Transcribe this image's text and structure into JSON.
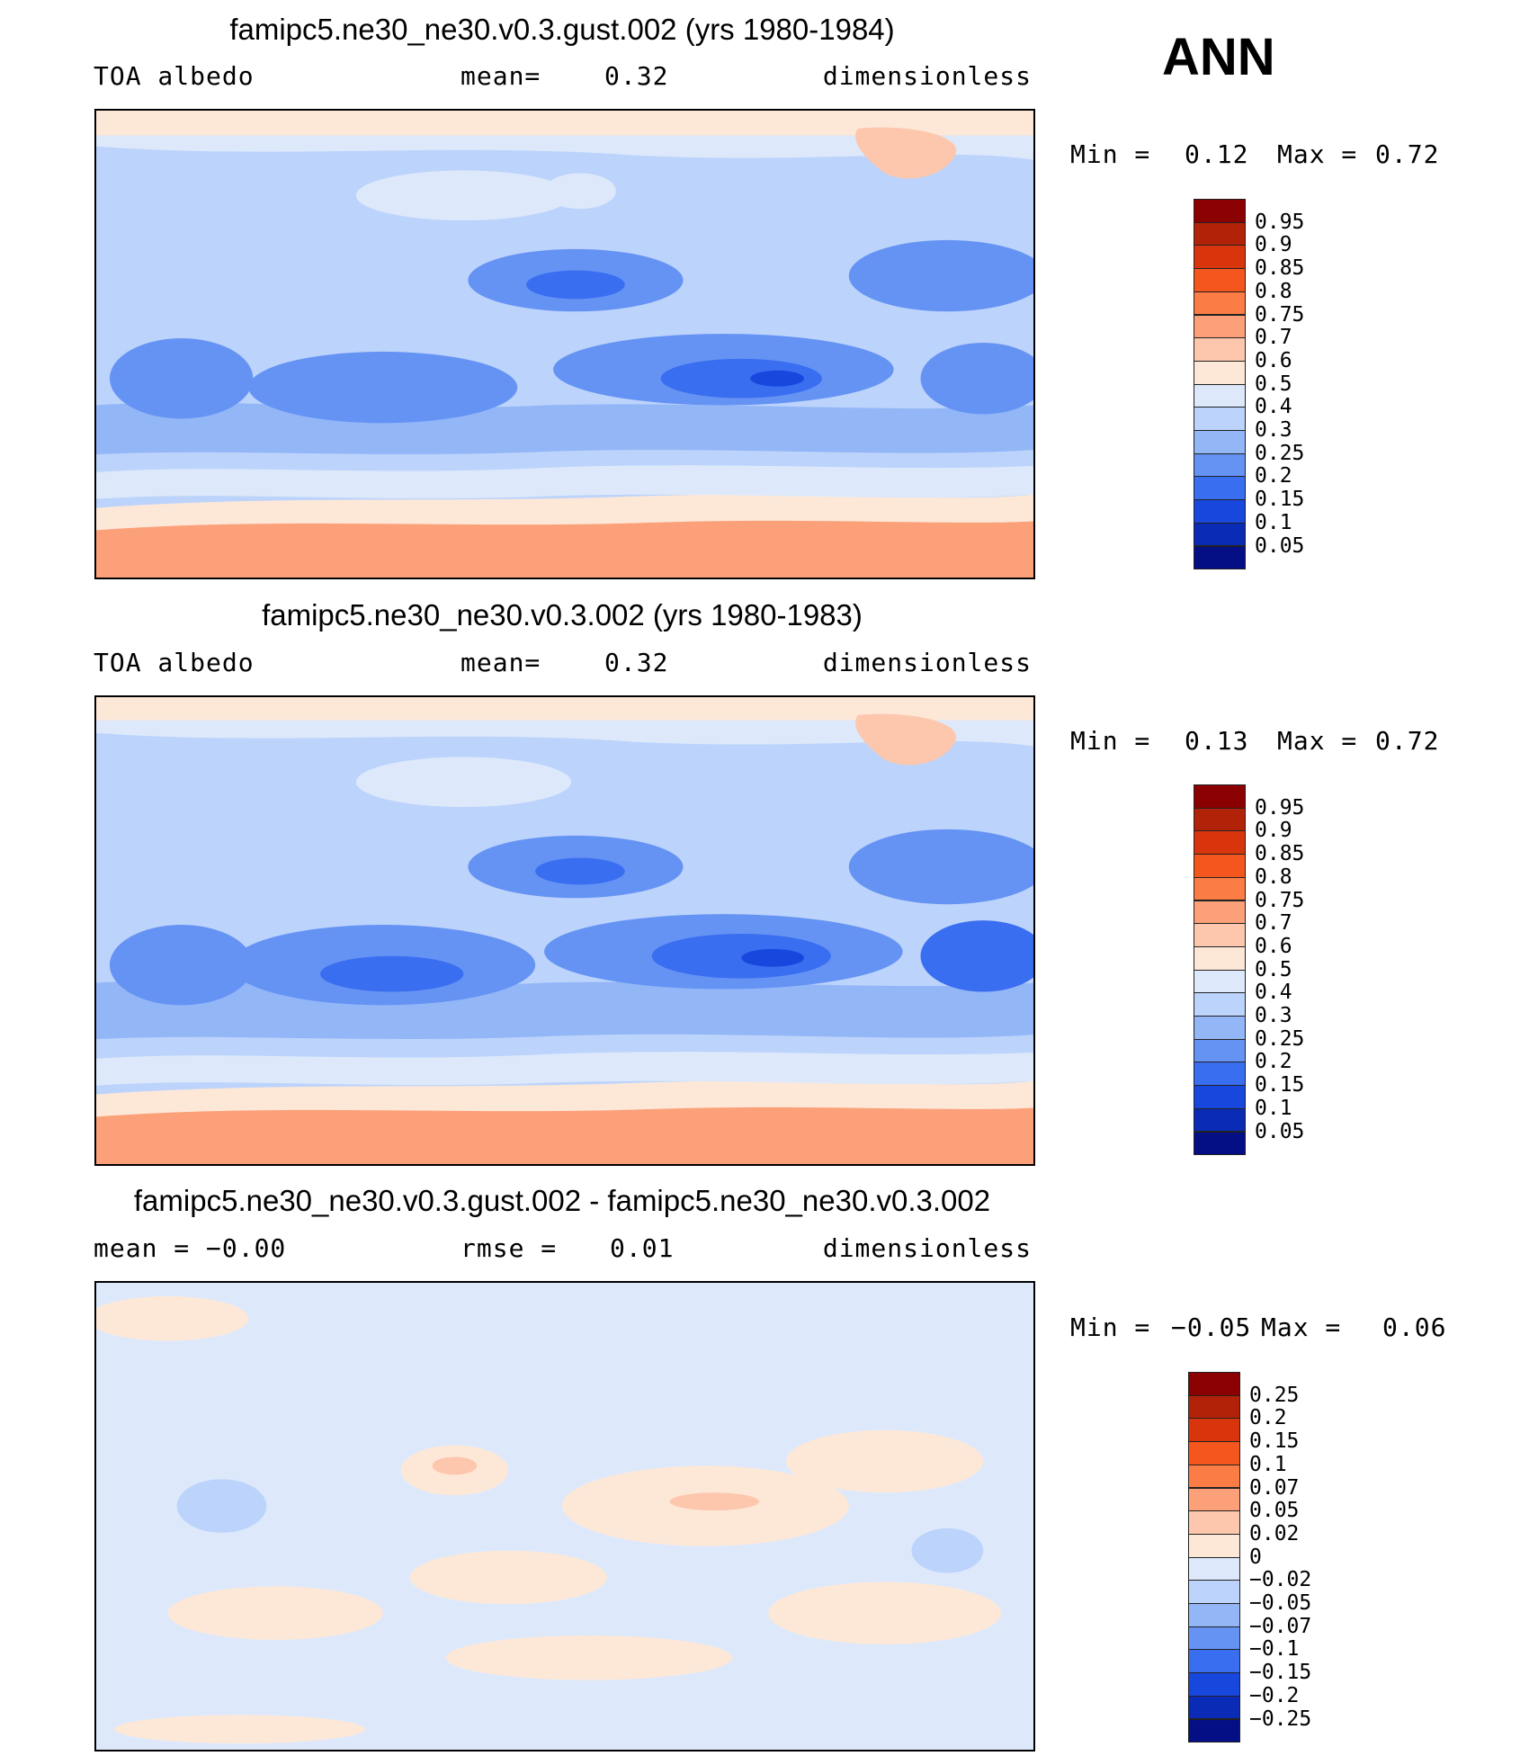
{
  "season": "ANN",
  "panels": [
    {
      "title": "famipc5.ne30_ne30.v0.3.gust.002 (yrs 1980-1984)",
      "left": "TOA albedo",
      "middle_label": "mean=",
      "middle_value": "0.32",
      "right": "dimensionless",
      "min_label": "Min =",
      "min_value": "0.12",
      "max_label": "Max =",
      "max_value": "0.72",
      "colorbar": {
        "labels": [
          "0.95",
          "0.9",
          "0.85",
          "0.8",
          "0.75",
          "0.7",
          "0.6",
          "0.5",
          "0.4",
          "0.3",
          "0.25",
          "0.2",
          "0.15",
          "0.1",
          "0.05"
        ],
        "colors": [
          "#8b0000",
          "#b22208",
          "#d9350d",
          "#f4561e",
          "#fb7c44",
          "#fca07a",
          "#fdc7ad",
          "#fde8d8",
          "#dde9fb",
          "#bcd3fb",
          "#93b6f7",
          "#6593f4",
          "#3a6ef0",
          "#1847de",
          "#0a2bb5",
          "#040f85"
        ]
      }
    },
    {
      "title": "famipc5.ne30_ne30.v0.3.002 (yrs 1980-1983)",
      "left": "TOA albedo",
      "middle_label": "mean=",
      "middle_value": "0.32",
      "right": "dimensionless",
      "min_label": "Min =",
      "min_value": "0.13",
      "max_label": "Max =",
      "max_value": "0.72",
      "colorbar": {
        "labels": [
          "0.95",
          "0.9",
          "0.85",
          "0.8",
          "0.75",
          "0.7",
          "0.6",
          "0.5",
          "0.4",
          "0.3",
          "0.25",
          "0.2",
          "0.15",
          "0.1",
          "0.05"
        ],
        "colors": [
          "#8b0000",
          "#b22208",
          "#d9350d",
          "#f4561e",
          "#fb7c44",
          "#fca07a",
          "#fdc7ad",
          "#fde8d8",
          "#dde9fb",
          "#bcd3fb",
          "#93b6f7",
          "#6593f4",
          "#3a6ef0",
          "#1847de",
          "#0a2bb5",
          "#040f85"
        ]
      }
    },
    {
      "title": "famipc5.ne30_ne30.v0.3.gust.002 - famipc5.ne30_ne30.v0.3.002",
      "left": "mean =  −0.00",
      "middle_label": "rmse =",
      "middle_value": "0.01",
      "right": "dimensionless",
      "min_label": "Min =",
      "min_value": "−0.05",
      "max_label": "Max =",
      "max_value": "0.06",
      "colorbar": {
        "labels": [
          "0.25",
          "0.2",
          "0.15",
          "0.1",
          "0.07",
          "0.05",
          "0.02",
          "0",
          "−0.02",
          "−0.05",
          "−0.07",
          "−0.1",
          "−0.15",
          "−0.2",
          "−0.25"
        ],
        "colors": [
          "#8b0000",
          "#b22208",
          "#d9350d",
          "#f4561e",
          "#fb7c44",
          "#fca07a",
          "#fdc7ad",
          "#fde8d8",
          "#dde9fb",
          "#bcd3fb",
          "#93b6f7",
          "#6593f4",
          "#3a6ef0",
          "#1847de",
          "#0a2bb5",
          "#040f85"
        ]
      }
    }
  ]
}
